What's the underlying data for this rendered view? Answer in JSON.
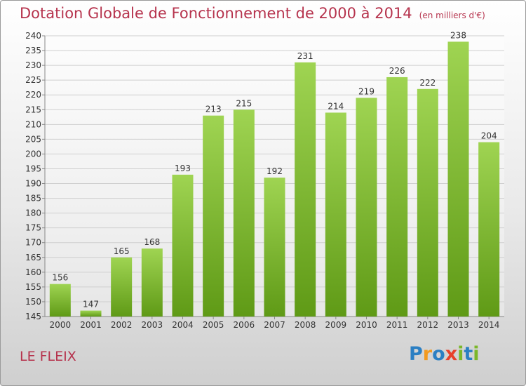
{
  "title": "Dotation Globale de Fonctionnement de 2000 à 2014",
  "unit": "(en milliers d'€)",
  "commune": "LE FLEIX",
  "logo": {
    "letters": [
      "P",
      "r",
      "o",
      "x",
      "i",
      "t",
      "i"
    ],
    "colors": [
      "#2b7fc3",
      "#f29a1f",
      "#2b7fc3",
      "#e8402a",
      "#7bb72a",
      "#2b7fc3",
      "#7bb72a"
    ]
  },
  "colors": {
    "title": "#b6334d",
    "bar_light": "#9fd452",
    "bar_dark": "#5f9a16"
  },
  "chart_data": {
    "type": "bar",
    "categories": [
      "2000",
      "2001",
      "2002",
      "2003",
      "2004",
      "2005",
      "2006",
      "2007",
      "2008",
      "2009",
      "2010",
      "2011",
      "2012",
      "2013",
      "2014"
    ],
    "values": [
      156,
      147,
      165,
      168,
      193,
      213,
      215,
      192,
      231,
      214,
      219,
      226,
      222,
      238,
      204
    ],
    "ylim": [
      145,
      240
    ],
    "yticks": [
      145,
      150,
      155,
      160,
      165,
      170,
      175,
      180,
      185,
      190,
      195,
      200,
      205,
      210,
      215,
      220,
      225,
      230,
      235,
      240
    ],
    "grid": true,
    "data_labels": true
  }
}
